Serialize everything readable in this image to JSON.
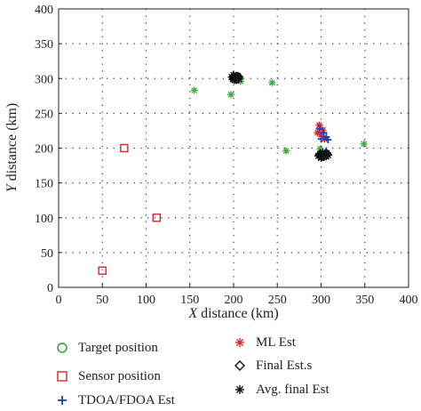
{
  "chart_data": {
    "type": "scatter",
    "title": "",
    "xlabel_italic": "X",
    "xlabel_rest": " distance (km)",
    "ylabel_italic": "Y",
    "ylabel_rest": " distance (km)",
    "xlim": [
      0,
      400
    ],
    "ylim": [
      0,
      400
    ],
    "xticks": [
      0,
      50,
      100,
      150,
      200,
      250,
      300,
      350,
      400
    ],
    "yticks": [
      0,
      50,
      100,
      150,
      200,
      250,
      300,
      350,
      400
    ],
    "grid": "dotted",
    "legend_placement": "bottom",
    "series": [
      {
        "name": "Target position",
        "marker": "circle",
        "color": "#2ca02c",
        "points": [
          [
            200,
            300
          ],
          [
            300,
            190
          ]
        ]
      },
      {
        "name": "Sensor position",
        "marker": "square",
        "color": "#d62728",
        "points": [
          [
            50,
            24
          ],
          [
            75,
            200
          ],
          [
            112,
            100
          ]
        ]
      },
      {
        "name": "TDOA/FDOA Est",
        "marker": "plus",
        "color": "#1f3fbf",
        "points": [
          [
            298,
            228
          ],
          [
            303,
            222
          ],
          [
            306,
            216
          ],
          [
            300,
            213
          ],
          [
            308,
            212
          ],
          [
            202,
            302
          ],
          [
            204,
            298
          ],
          [
            199,
            300
          ],
          [
            306,
            196
          ]
        ]
      },
      {
        "name": "ML Est",
        "marker": "star",
        "color": "#d62728",
        "points": [
          [
            298,
            233
          ],
          [
            302,
            226
          ],
          [
            300,
            219
          ],
          [
            296,
            222
          ],
          [
            304,
            213
          ],
          [
            201,
            303
          ],
          [
            205,
            301
          ],
          [
            203,
            297
          ]
        ]
      },
      {
        "name": "Final Est.s",
        "marker": "diamond",
        "color": "#111111",
        "points": [
          [
            200,
            303
          ],
          [
            203,
            299
          ],
          [
            206,
            302
          ],
          [
            298,
            190
          ],
          [
            303,
            188
          ],
          [
            307,
            191
          ]
        ]
      },
      {
        "name": "Avg. final Est",
        "marker": "asterisk",
        "color": "#111111",
        "points": [
          [
            198,
            302
          ],
          [
            200,
            305
          ],
          [
            202,
            300
          ],
          [
            204,
            304
          ],
          [
            206,
            299
          ],
          [
            205,
            303
          ],
          [
            201,
            298
          ],
          [
            199,
            299
          ],
          [
            297,
            189
          ],
          [
            299,
            192
          ],
          [
            301,
            187
          ],
          [
            303,
            190
          ],
          [
            305,
            193
          ],
          [
            306,
            188
          ],
          [
            308,
            190
          ],
          [
            302,
            194
          ],
          [
            300,
            186
          ]
        ]
      },
      {
        "name": "",
        "marker": "star",
        "color": "#3cb043",
        "points": [
          [
            155,
            283
          ],
          [
            197,
            277
          ],
          [
            244,
            294
          ],
          [
            260,
            196
          ],
          [
            349,
            206
          ],
          [
            208,
            296
          ],
          [
            299,
            199
          ]
        ]
      }
    ]
  }
}
